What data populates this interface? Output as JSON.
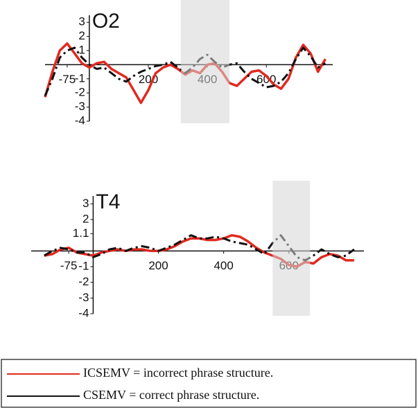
{
  "chart_data": [
    {
      "type": "line",
      "title": "O2",
      "x": [
        -150,
        -125,
        -100,
        -75,
        -50,
        -25,
        0,
        25,
        50,
        75,
        100,
        125,
        150,
        175,
        200,
        225,
        250,
        275,
        300,
        325,
        350,
        375,
        400,
        425,
        450,
        475,
        500,
        525,
        550,
        575,
        600,
        625,
        650,
        675,
        700,
        725,
        750,
        775,
        800
      ],
      "series": [
        {
          "name": "ICSEMV = incorrect phrase structure.",
          "color": "#e0291f",
          "style": "solid",
          "values": [
            -2.3,
            -0.5,
            1.0,
            1.5,
            0.8,
            0.1,
            -0.2,
            0.1,
            0.2,
            -0.3,
            -0.6,
            -0.9,
            -1.8,
            -2.7,
            -1.8,
            -0.6,
            -0.2,
            0,
            -0.3,
            -0.7,
            -0.4,
            -0.6,
            0,
            0.1,
            -0.5,
            -1.3,
            -1.5,
            -1.0,
            -0.5,
            -0.4,
            -0.8,
            -1.4,
            -1.7,
            -1.0,
            0.5,
            1.4,
            0.8,
            -0.5,
            0.4
          ]
        },
        {
          "name": "CSEMV = correct phrase structure.",
          "color": "#111111",
          "style": "dashed",
          "values": [
            -2.2,
            -1.0,
            0.5,
            1.0,
            1.2,
            0.5,
            0,
            -0.3,
            -0.2,
            -0.6,
            -1.0,
            -1.2,
            -0.8,
            -0.5,
            -0.3,
            -0.1,
            0,
            0.2,
            -0.2,
            -0.6,
            -0.2,
            0.4,
            0.7,
            0.2,
            -0.2,
            0,
            0.1,
            -0.5,
            -1.0,
            -1.3,
            -1.6,
            -1.5,
            -1.2,
            -0.6,
            0.4,
            1.2,
            0.6,
            -0.2,
            0.1
          ]
        }
      ],
      "highlight": [
        310,
        475
      ],
      "xlim": [
        -150,
        825
      ],
      "ylim": [
        -4,
        3.5
      ],
      "xticks": [
        -75,
        200,
        400,
        600
      ],
      "yticks": [
        3,
        2,
        1,
        -1,
        -2,
        -3,
        -4
      ]
    },
    {
      "type": "line",
      "title": "T4",
      "x": [
        -150,
        -125,
        -100,
        -75,
        -50,
        -25,
        0,
        25,
        50,
        75,
        100,
        125,
        150,
        175,
        200,
        225,
        250,
        275,
        300,
        325,
        350,
        375,
        400,
        425,
        450,
        475,
        500,
        525,
        550,
        575,
        600,
        625,
        650,
        675,
        700,
        725,
        750,
        775,
        800
      ],
      "series": [
        {
          "color": "#e0291f",
          "style": "solid",
          "values": [
            -0.3,
            -0.2,
            0.1,
            0.2,
            -0.1,
            -0.2,
            -0.3,
            -0.1,
            0,
            0.1,
            0,
            0.1,
            0.1,
            0,
            0,
            0.1,
            0.3,
            0.6,
            0.8,
            0.8,
            0.7,
            0.7,
            0.8,
            1.0,
            0.9,
            0.6,
            0.2,
            -0.1,
            -0.3,
            -0.5,
            -0.9,
            -1.0,
            -0.7,
            -0.8,
            -0.4,
            -0.2,
            -0.3,
            -0.6,
            -0.6
          ]
        },
        {
          "color": "#111111",
          "style": "dashed",
          "values": [
            -0.3,
            0,
            0.2,
            0.1,
            -0.1,
            -0.1,
            -0.4,
            -0.2,
            0.1,
            0.2,
            0,
            0.2,
            0.3,
            0.2,
            0,
            0.2,
            0.4,
            0.7,
            1.0,
            0.8,
            0.8,
            0.9,
            0.8,
            0.6,
            0.5,
            0.4,
            0.1,
            -0.2,
            0.5,
            1.0,
            0.3,
            -0.4,
            -0.6,
            -0.3,
            0.1,
            -0.2,
            -0.4,
            -0.3,
            0.1
          ]
        }
      ],
      "highlight": [
        550,
        665
      ],
      "xlim": [
        -190,
        830
      ],
      "ylim": [
        -4,
        3.5
      ],
      "xticks": [
        -75,
        200,
        400,
        600
      ],
      "yticks": [
        3,
        2,
        1.1,
        -1,
        -2,
        -3,
        -4
      ]
    }
  ]
}
